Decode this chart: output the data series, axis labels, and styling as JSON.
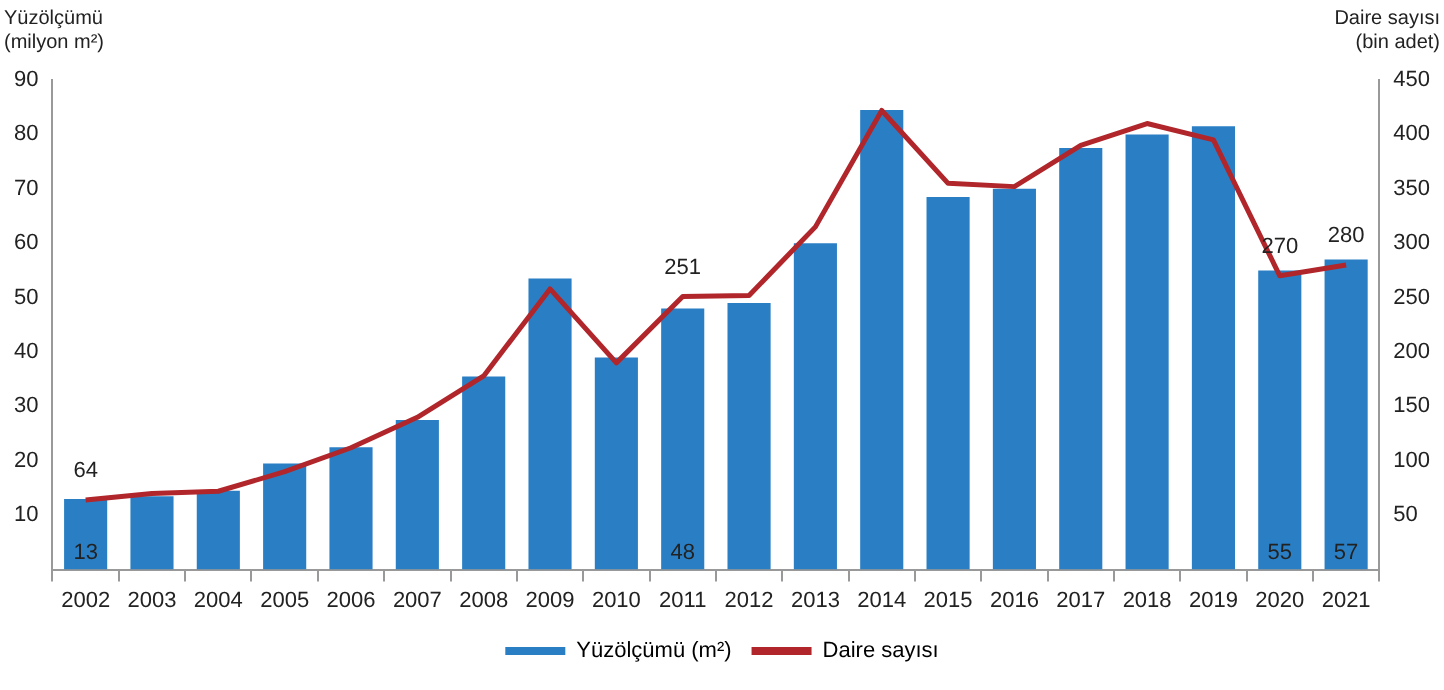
{
  "chart_data": {
    "type": "bar",
    "ylabel": "Yüzölçümü (milyon m²)",
    "y2label": "Daire sayısı (bin adet)",
    "categories": [
      "2002",
      "2003",
      "2004",
      "2005",
      "2006",
      "2007",
      "2008",
      "2009",
      "2010",
      "2011",
      "2012",
      "2013",
      "2014",
      "2015",
      "2016",
      "2017",
      "2018",
      "2019",
      "2020",
      "2021"
    ],
    "series": [
      {
        "name": "Yüzölçümü (m²)",
        "color": "#2a7fc4",
        "values": [
          13,
          13.5,
          14.5,
          19.5,
          22.5,
          27.5,
          35.5,
          53.5,
          39,
          48,
          49,
          60,
          84.5,
          68.5,
          70,
          77.5,
          80,
          81.5,
          55,
          57
        ],
        "value_labels": [
          "13",
          null,
          null,
          null,
          null,
          null,
          null,
          null,
          null,
          "48",
          null,
          null,
          null,
          null,
          null,
          null,
          null,
          null,
          "55",
          "57"
        ]
      },
      {
        "name": "Daire sayısı",
        "type": "line",
        "axis": "y2",
        "color": "#b0262a",
        "values": [
          64,
          70,
          72,
          90,
          112,
          140,
          178,
          258,
          190,
          251,
          252,
          315,
          422,
          355,
          352,
          390,
          410,
          395,
          270,
          280
        ],
        "value_labels": [
          "64",
          null,
          null,
          null,
          null,
          null,
          null,
          null,
          null,
          "251",
          null,
          null,
          null,
          null,
          null,
          null,
          null,
          null,
          "270",
          "280"
        ]
      }
    ],
    "ylim": [
      0,
      90
    ],
    "yticks": [
      10,
      20,
      30,
      40,
      50,
      60,
      70,
      80,
      90
    ],
    "y2lim": [
      0,
      450
    ],
    "y2ticks": [
      50,
      100,
      150,
      200,
      250,
      300,
      350,
      400,
      450
    ],
    "grid": false,
    "legend": "bottom",
    "marker": "none",
    "line_style": "solid"
  }
}
